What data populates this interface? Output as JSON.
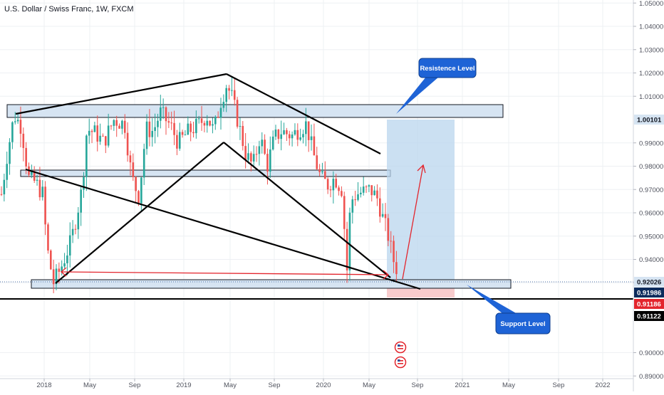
{
  "chart_data": {
    "type": "candlestick",
    "title": "U.S. Dollar / Swiss Franc, 1W, FXCM",
    "y_ticks": [
      "1.05000",
      "1.04000",
      "1.03000",
      "1.02000",
      "1.01000",
      "0.99000",
      "0.98000",
      "0.97000",
      "0.96000",
      "0.95000",
      "0.94000",
      "0.93000",
      "0.90000",
      "0.89000",
      "0.88000"
    ],
    "x_ticks": [
      "2018",
      "May",
      "Sep",
      "2019",
      "May",
      "Sep",
      "2020",
      "May",
      "Sep",
      "2021",
      "May",
      "Sep",
      "2022"
    ],
    "price_tags": [
      {
        "label": "1.00101",
        "bg": "#d6e4f2",
        "fg": "#131722"
      },
      {
        "label": "0.92026",
        "bg": "#d6e4f2",
        "fg": "#131722"
      },
      {
        "label": "0.91986",
        "bg": "#0c2b5c",
        "fg": "#ffffff"
      },
      {
        "label": "0.91186",
        "bg": "#e3252d",
        "fg": "#ffffff"
      },
      {
        "label": "0.91122",
        "bg": "#000000",
        "fg": "#ffffff"
      }
    ],
    "callouts": [
      {
        "text": "Resistence Level"
      },
      {
        "text": "Support Level"
      }
    ],
    "colors": {
      "up": "#26a69a",
      "down": "#ef5350",
      "zone_fill": "#d6e4f2",
      "target_fill": "#b9d6ee",
      "stop_fill": "#f7c6c8",
      "callout": "#1e63d6"
    }
  }
}
